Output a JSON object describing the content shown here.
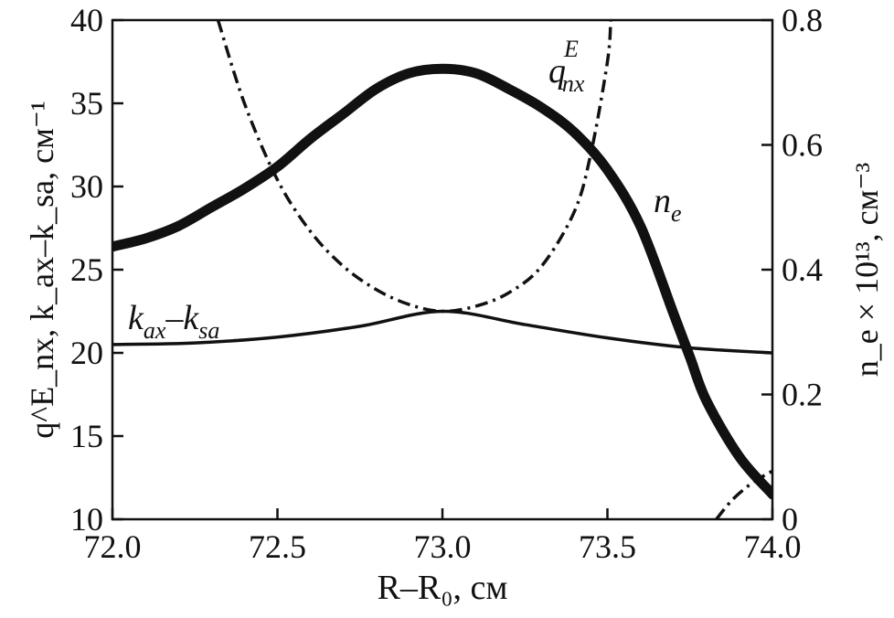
{
  "chart_data": {
    "type": "line",
    "xlabel": "R–R₀, см",
    "ylabel_left": "q^E_nx, k_ax–k_sa, см⁻¹",
    "ylabel_right": "n_e × 10¹³, см⁻³",
    "xlim": [
      72.0,
      74.0
    ],
    "ylim_left": [
      10,
      40
    ],
    "ylim_right": [
      0,
      0.8
    ],
    "xticks": [
      "72.0",
      "72.5",
      "73.0",
      "73.5",
      "74.0"
    ],
    "yticks_left": [
      "10",
      "15",
      "20",
      "25",
      "30",
      "35",
      "40"
    ],
    "yticks_right": [
      "0",
      "0.2",
      "0.4",
      "0.6",
      "0.8"
    ],
    "grid": false,
    "series": [
      {
        "name": "n_e",
        "axis": "right",
        "style": "thick-solid",
        "x": [
          72.0,
          72.1,
          72.2,
          72.3,
          72.4,
          72.5,
          72.6,
          72.7,
          72.8,
          72.9,
          73.0,
          73.1,
          73.2,
          73.3,
          73.4,
          73.5,
          73.6,
          73.7,
          73.75,
          73.8,
          73.9,
          74.0
        ],
        "y": [
          0.437,
          0.45,
          0.47,
          0.5,
          0.53,
          0.565,
          0.61,
          0.65,
          0.69,
          0.715,
          0.722,
          0.715,
          0.69,
          0.66,
          0.62,
          0.56,
          0.47,
          0.33,
          0.26,
          0.19,
          0.1,
          0.04
        ]
      },
      {
        "name": "q^E_nx",
        "axis": "left",
        "style": "dash-dot",
        "x": [
          72.32,
          72.4,
          72.5,
          72.6,
          72.7,
          72.8,
          72.9,
          73.0,
          73.1,
          73.2,
          73.3,
          73.4,
          73.45,
          73.5,
          73.51
        ],
        "y": [
          40,
          35,
          30.4,
          27.3,
          25.2,
          23.8,
          22.9,
          22.5,
          22.8,
          23.6,
          25.2,
          28.5,
          32,
          37.5,
          40
        ]
      },
      {
        "name": "q^E_nx",
        "axis": "left",
        "style": "dash-dot",
        "x": [
          73.83,
          73.88,
          73.94,
          74.0
        ],
        "y": [
          10,
          11.2,
          12.2,
          12.9
        ]
      },
      {
        "name": "k_ax–k_sa",
        "axis": "left",
        "style": "solid",
        "x": [
          72.0,
          72.25,
          72.5,
          72.75,
          73.0,
          73.25,
          73.5,
          73.75,
          74.0
        ],
        "y": [
          20.5,
          20.6,
          20.95,
          21.6,
          22.5,
          21.7,
          20.9,
          20.3,
          20.0
        ]
      }
    ],
    "annotations": {
      "q_base": "q",
      "q_sub": "nx",
      "q_sup": "E",
      "n_base": "n",
      "n_sub": "e",
      "k_text1": "k",
      "k_sub1": "ax",
      "k_dash": "–",
      "k_text2": "k",
      "k_sub2": "sa"
    }
  }
}
